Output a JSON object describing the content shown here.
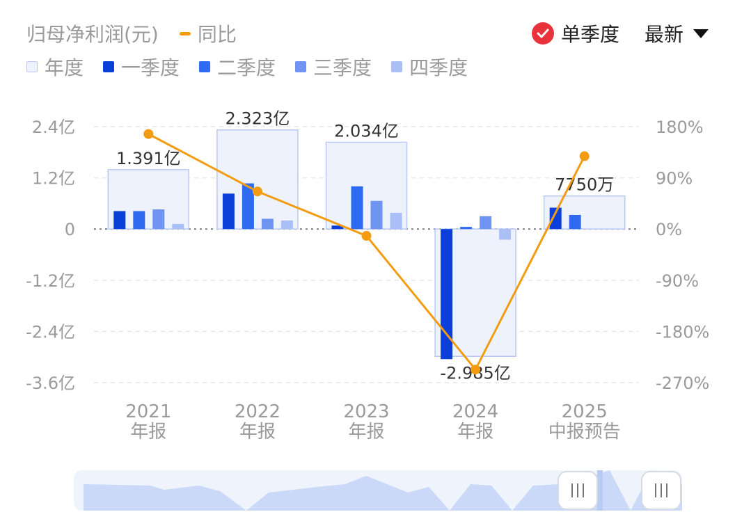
{
  "header": {
    "title": "归母净利润(元)",
    "yoy_label": "同比",
    "single_quarter_label": "单季度",
    "latest_label": "最新"
  },
  "legend": {
    "annual": "年度",
    "q1": "一季度",
    "q2": "二季度",
    "q3": "三季度",
    "q4": "四季度"
  },
  "colors": {
    "annual_fill": "#eef2fd",
    "annual_stroke": "#b9c8f2",
    "q1": "#0b3fd9",
    "q2": "#2e6bf0",
    "q3": "#6f94f2",
    "q4": "#a9bff6",
    "yoy_line": "#f39c12",
    "check": "#e8323c"
  },
  "chart_data": {
    "type": "bar",
    "categories": [
      "2021 年报",
      "2022 年报",
      "2023 年报",
      "2024 年报",
      "2025 中报预告"
    ],
    "category_labels": [
      [
        "2021",
        "年报"
      ],
      [
        "2022",
        "年报"
      ],
      [
        "2023",
        "年报"
      ],
      [
        "2024",
        "年报"
      ],
      [
        "2025",
        "中报预告"
      ]
    ],
    "series": [
      {
        "name": "年度",
        "values": [
          1.391,
          2.323,
          2.034,
          -2.985,
          0.775
        ]
      },
      {
        "name": "一季度",
        "values": [
          0.42,
          0.83,
          0.08,
          -3.05,
          0.5
        ]
      },
      {
        "name": "二季度",
        "values": [
          0.42,
          1.07,
          1.0,
          0.05,
          0.33
        ]
      },
      {
        "name": "三季度",
        "values": [
          0.46,
          0.24,
          0.66,
          0.3,
          null
        ]
      },
      {
        "name": "四季度",
        "values": [
          0.12,
          0.2,
          0.38,
          -0.25,
          null
        ]
      }
    ],
    "yoy": {
      "name": "同比",
      "values": [
        167,
        66,
        -12,
        -247,
        128
      ]
    },
    "annual_labels": [
      "1.391亿",
      "2.323亿",
      "2.034亿",
      "-2.985亿",
      "7750万"
    ],
    "y_left": {
      "min": -3.6,
      "max": 2.4,
      "ticks": [
        2.4,
        1.2,
        0,
        -1.2,
        -2.4,
        -3.6
      ],
      "tick_labels": [
        "2.4亿",
        "1.2亿",
        "0",
        "-1.2亿",
        "-2.4亿",
        "-3.6亿"
      ]
    },
    "y_right": {
      "min": -270,
      "max": 180,
      "ticks": [
        180,
        90,
        0,
        -90,
        -180,
        -270
      ],
      "tick_labels": [
        "180%",
        "90%",
        "0%",
        "-90%",
        "-180%",
        "-270%"
      ]
    },
    "grid": true,
    "legend_position": "top-left"
  }
}
